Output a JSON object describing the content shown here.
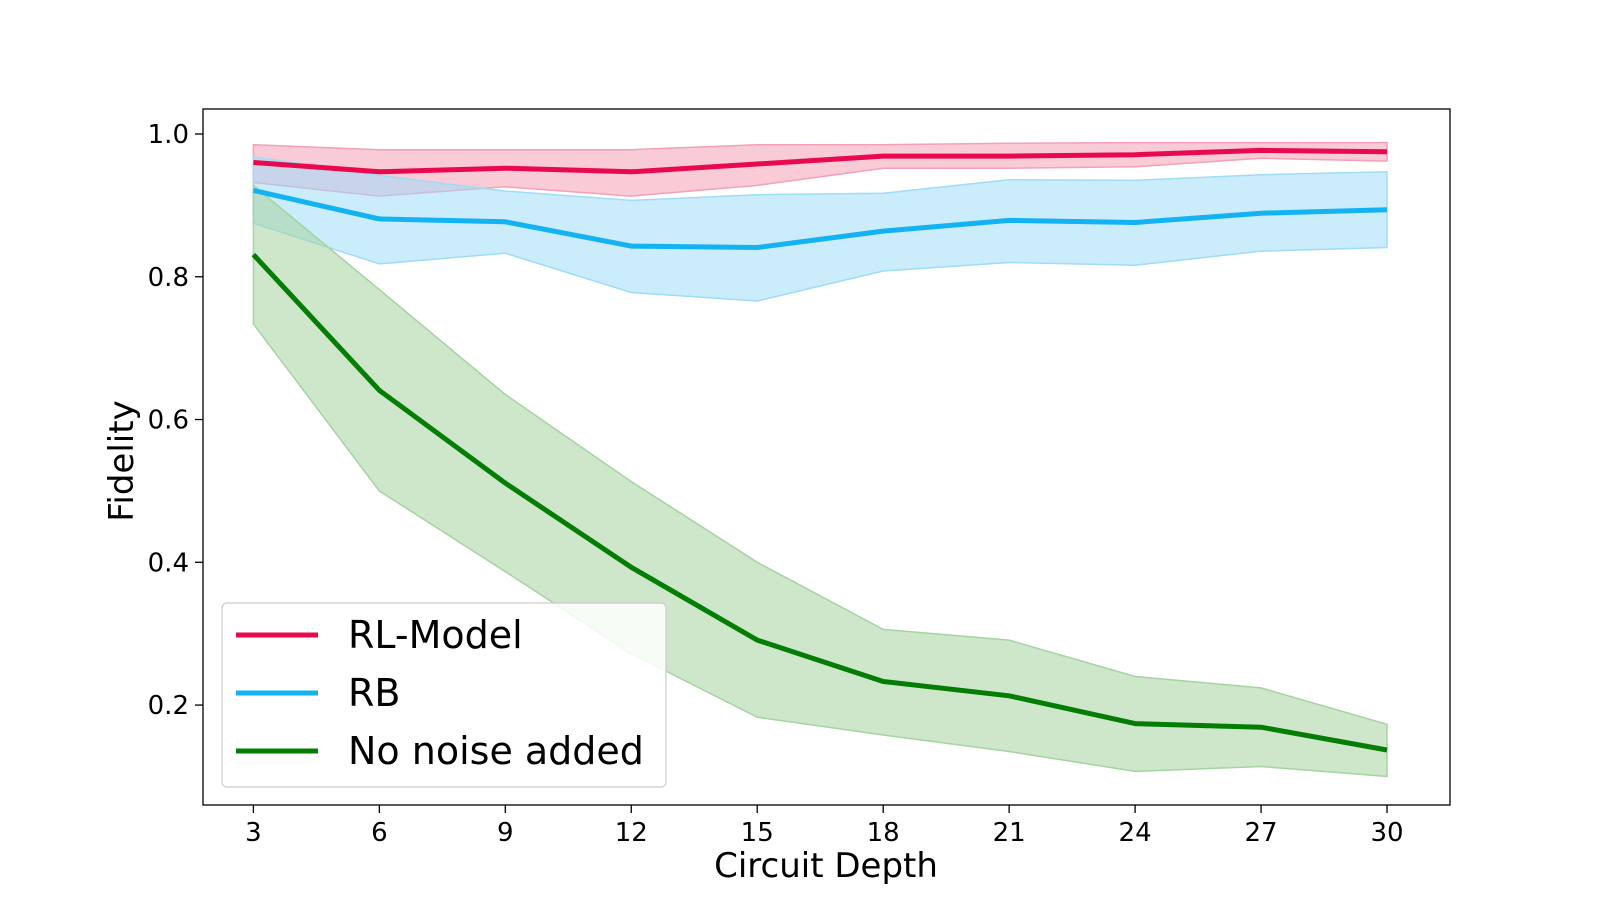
{
  "chart_data": {
    "type": "line",
    "xlabel": "Circuit Depth",
    "ylabel": "Fidelity",
    "xlim": [
      1.8,
      31.5
    ],
    "ylim": [
      0.06,
      1.035
    ],
    "x": [
      3,
      6,
      9,
      12,
      15,
      18,
      21,
      24,
      27,
      30
    ],
    "xticks": [
      "3",
      "6",
      "9",
      "12",
      "15",
      "18",
      "21",
      "24",
      "27",
      "30"
    ],
    "yticks": [
      0.2,
      0.4,
      0.6,
      0.8,
      1.0
    ],
    "ytick_labels": [
      "0.2",
      "0.4",
      "0.6",
      "0.8",
      "1.0"
    ],
    "grid": false,
    "legend_position": "lower-left",
    "series": [
      {
        "name": "RL-Model",
        "color": "#e8094e",
        "band_color": "#f4a0b6",
        "values": [
          0.96,
          0.947,
          0.952,
          0.947,
          0.958,
          0.969,
          0.969,
          0.971,
          0.977,
          0.975
        ],
        "upper": [
          0.985,
          0.978,
          0.978,
          0.978,
          0.985,
          0.985,
          0.987,
          0.988,
          0.988,
          0.988
        ],
        "lower": [
          0.932,
          0.913,
          0.926,
          0.913,
          0.928,
          0.952,
          0.952,
          0.954,
          0.966,
          0.962
        ]
      },
      {
        "name": "RB",
        "color": "#13b2f2",
        "band_color": "#9fdcf7",
        "values": [
          0.921,
          0.881,
          0.877,
          0.843,
          0.841,
          0.864,
          0.879,
          0.876,
          0.889,
          0.894
        ],
        "upper": [
          0.968,
          0.942,
          0.92,
          0.907,
          0.915,
          0.917,
          0.936,
          0.935,
          0.943,
          0.947
        ],
        "lower": [
          0.875,
          0.818,
          0.833,
          0.778,
          0.766,
          0.808,
          0.82,
          0.816,
          0.836,
          0.841
        ]
      },
      {
        "name": "No noise added",
        "color": "#037d03",
        "band_color": "#a5d3a1",
        "values": [
          0.831,
          0.641,
          0.511,
          0.393,
          0.291,
          0.233,
          0.213,
          0.174,
          0.169,
          0.137
        ],
        "upper": [
          0.928,
          0.782,
          0.635,
          0.513,
          0.4,
          0.306,
          0.291,
          0.24,
          0.224,
          0.173
        ],
        "lower": [
          0.734,
          0.5,
          0.387,
          0.272,
          0.183,
          0.158,
          0.135,
          0.107,
          0.114,
          0.1
        ]
      }
    ]
  }
}
